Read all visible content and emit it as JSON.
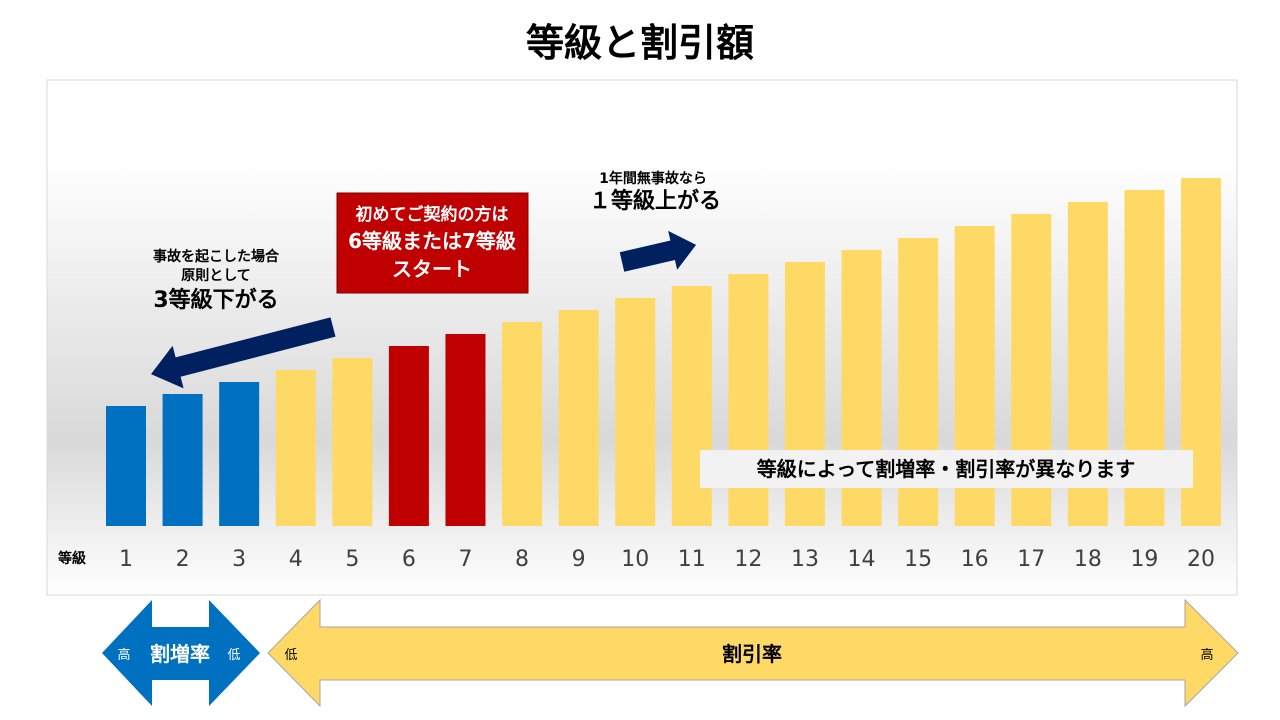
{
  "title": "等級と割引額",
  "chart_data": {
    "type": "bar",
    "x_axis_label": "等級",
    "categories": [
      "1",
      "2",
      "3",
      "4",
      "5",
      "6",
      "7",
      "8",
      "9",
      "10",
      "11",
      "12",
      "13",
      "14",
      "15",
      "16",
      "17",
      "18",
      "19",
      "20"
    ],
    "values": [
      10,
      11,
      12,
      13,
      14,
      15,
      16,
      17,
      18,
      19,
      20,
      21,
      22,
      23,
      24,
      25,
      26,
      27,
      28,
      29
    ],
    "bar_colors": [
      "#0070c0",
      "#0070c0",
      "#0070c0",
      "#ffd966",
      "#ffd966",
      "#c00000",
      "#c00000",
      "#ffd966",
      "#ffd966",
      "#ffd966",
      "#ffd966",
      "#ffd966",
      "#ffd966",
      "#ffd966",
      "#ffd966",
      "#ffd966",
      "#ffd966",
      "#ffd966",
      "#ffd966",
      "#ffd966"
    ],
    "y_axis_shown": false,
    "grid": false
  },
  "annotations": {
    "accident": {
      "line1": "事故を起こした場合",
      "line2": "原則として",
      "line3": "3等級下がる"
    },
    "no_accident": {
      "line1": "1年間無事故なら",
      "line2": "１等級上がる"
    },
    "first_contract": {
      "line1": "初めてご契約の方は",
      "line2": "6等級または7等級",
      "line3": "スタート"
    },
    "note": "等級によって割増率・割引率が異なります"
  },
  "surcharge_arrow": {
    "label": "割増率",
    "left": "高",
    "right": "低"
  },
  "discount_arrow": {
    "label": "割引率",
    "left": "低",
    "right": "高"
  },
  "colors": {
    "surcharge": "#0070c0",
    "discount": "#ffd966",
    "start": "#c00000",
    "arrow": "#002060"
  }
}
